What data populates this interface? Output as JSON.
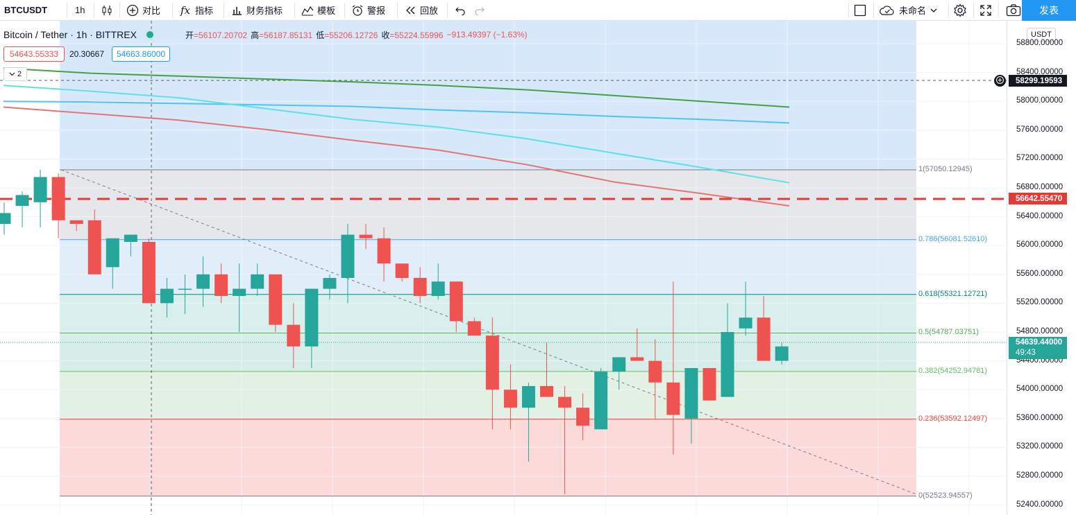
{
  "toolbar": {
    "symbol": "BTCUSDT",
    "interval": "1h",
    "compare": "对比",
    "indicators": "指标",
    "financials": "财务指标",
    "templates": "模板",
    "alerts": "警报",
    "replay": "回放",
    "layout_name": "未命名",
    "publish": "发表"
  },
  "legend": {
    "title": "Bitcoin / Tether · 1h · BITTREX",
    "open_label": "开",
    "open": "56107.20702",
    "high_label": "高",
    "high": "56187.85131",
    "low_label": "低",
    "low": "55206.12726",
    "close_label": "收",
    "close": "55224.55996",
    "change": "−913.49397 (−1.63%)",
    "sell_price": "54643.55333",
    "spread": "20.30667",
    "buy_price": "54663.86000",
    "collapsed_count": "2"
  },
  "price_scale": {
    "currency": "USDT",
    "labels": [
      "58800.00000",
      "58400.00000",
      "58000.00000",
      "57600.00000",
      "57200.00000",
      "56800.00000",
      "56400.00000",
      "56000.00000",
      "55600.00000",
      "55200.00000",
      "54800.00000",
      "54400.00000",
      "54000.00000",
      "53600.00000",
      "53200.00000",
      "52800.00000",
      "52400.00000"
    ],
    "crosshair_price": "58299.19593",
    "alert_price": "56642.55470",
    "last_price": "54639.44000",
    "countdown": "49:43"
  },
  "fib_levels": [
    {
      "label": "1(57050.12945)",
      "color": "#787b86"
    },
    {
      "label": "0.786(56081.52610)",
      "color": "#42a5f5"
    },
    {
      "label": "0.618(55321.12721)",
      "color": "#00897b"
    },
    {
      "label": "0.5(54787.03751)",
      "color": "#4caf50"
    },
    {
      "label": "0.382(54252.94781)",
      "color": "#66bb6a"
    },
    {
      "label": "0.236(53592.12497)",
      "color": "#f44336"
    },
    {
      "label": "0(52523.94557)",
      "color": "#787b86"
    }
  ],
  "chart_data": {
    "type": "candlestick",
    "interval": "1h",
    "candles": [
      [
        56300,
        56600,
        56150,
        56450
      ],
      [
        56550,
        56750,
        56250,
        56700
      ],
      [
        56600,
        57050,
        56250,
        56950
      ],
      [
        56950,
        57000,
        56100,
        56350
      ],
      [
        56350,
        56350,
        56200,
        56300
      ],
      [
        56350,
        56500,
        55600,
        55600
      ],
      [
        55700,
        56100,
        55400,
        56100
      ],
      [
        56050,
        56150,
        55850,
        56150
      ],
      [
        56050,
        56100,
        55200,
        55200
      ],
      [
        55200,
        55550,
        55000,
        55400
      ],
      [
        55400,
        55600,
        55050,
        55400
      ],
      [
        55400,
        55850,
        55150,
        55600
      ],
      [
        55600,
        55750,
        55200,
        55300
      ],
      [
        55300,
        55750,
        54800,
        55400
      ],
      [
        55400,
        55750,
        55300,
        55600
      ],
      [
        55600,
        55600,
        54800,
        54900
      ],
      [
        54900,
        55200,
        54300,
        54600
      ],
      [
        54600,
        55400,
        54300,
        55400
      ],
      [
        55400,
        55600,
        55250,
        55550
      ],
      [
        55550,
        56300,
        55200,
        56150
      ],
      [
        56150,
        56300,
        55950,
        56100
      ],
      [
        56100,
        56250,
        55500,
        55750
      ],
      [
        55750,
        55750,
        55500,
        55550
      ],
      [
        55550,
        55700,
        55200,
        55300
      ],
      [
        55300,
        55750,
        55250,
        55500
      ],
      [
        55500,
        55500,
        54800,
        54950
      ],
      [
        54950,
        55000,
        54750,
        54750
      ],
      [
        54750,
        55000,
        53450,
        54000
      ],
      [
        54000,
        54350,
        53450,
        53750
      ],
      [
        53750,
        54100,
        53000,
        54050
      ],
      [
        54050,
        54650,
        53900,
        53900
      ],
      [
        53900,
        54050,
        52550,
        53750
      ],
      [
        53750,
        53950,
        53300,
        53500
      ],
      [
        53450,
        54300,
        53450,
        54250
      ],
      [
        54250,
        54450,
        54000,
        54450
      ],
      [
        54450,
        54850,
        54400,
        54400
      ],
      [
        54400,
        54700,
        53600,
        54100
      ],
      [
        54100,
        55500,
        53100,
        53650
      ],
      [
        53600,
        54300,
        53250,
        54300
      ],
      [
        54300,
        54300,
        53850,
        53850
      ],
      [
        53900,
        55200,
        53900,
        54800
      ],
      [
        54850,
        55500,
        54750,
        55000
      ],
      [
        55000,
        55300,
        54400,
        54400
      ],
      [
        54400,
        54650,
        54350,
        54600
      ]
    ],
    "moving_averages": [
      {
        "name": "MA green",
        "color": "#43a047",
        "values": [
          58460,
          58390,
          58350,
          58310,
          58270,
          58220,
          58160,
          58080,
          58000,
          57920
        ]
      },
      {
        "name": "MA blue",
        "color": "#4fc3f7",
        "values": [
          58000,
          57990,
          57970,
          57950,
          57930,
          57880,
          57840,
          57790,
          57750,
          57700
        ]
      },
      {
        "name": "MA cyan",
        "color": "#5ce1e6",
        "values": [
          58220,
          58140,
          58050,
          57900,
          57750,
          57640,
          57480,
          57280,
          57080,
          56870
        ]
      },
      {
        "name": "MA red",
        "color": "#e57373",
        "values": [
          57920,
          57830,
          57740,
          57610,
          57460,
          57320,
          57120,
          56880,
          56720,
          56550
        ]
      }
    ],
    "ylim": [
      52270,
      59180
    ]
  }
}
